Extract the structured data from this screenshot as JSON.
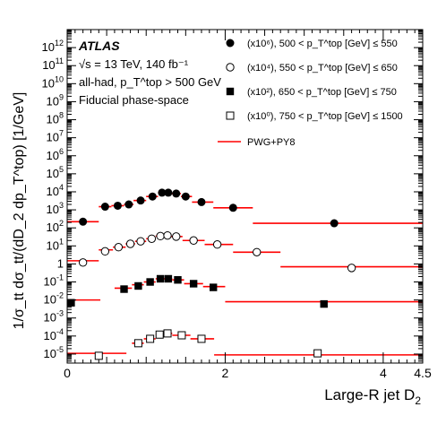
{
  "chart_data": {
    "type": "scatter",
    "title": "",
    "experiment": "ATLAS",
    "annotations": [
      "√s = 13 TeV, 140  fb⁻¹",
      "all-had, p_T^top > 500 GeV",
      "Fiducial phase-space"
    ],
    "xlabel": "Large-R jet D",
    "xlabel_sub": "2",
    "ylabel": "1/σ_tt dσ_tt/(dD_2 dp_T^top) [1/GeV]",
    "xlim": [
      0,
      4.5
    ],
    "ylog": true,
    "ylim_exponent": [
      -5.5,
      13
    ],
    "x_ticks": [
      "0",
      "2",
      "4",
      "4.5"
    ],
    "y_ticks": [
      {
        "base": "10",
        "exp": "12"
      },
      {
        "base": "10",
        "exp": "11"
      },
      {
        "base": "10",
        "exp": "10"
      },
      {
        "base": "10",
        "exp": "9"
      },
      {
        "base": "10",
        "exp": "8"
      },
      {
        "base": "10",
        "exp": "7"
      },
      {
        "base": "10",
        "exp": "6"
      },
      {
        "base": "10",
        "exp": "5"
      },
      {
        "base": "10",
        "exp": "4"
      },
      {
        "base": "10",
        "exp": "3"
      },
      {
        "base": "10",
        "exp": "2"
      },
      {
        "base": "10",
        "exp": "1"
      },
      {
        "base": "1",
        "exp": ""
      },
      {
        "base": "10",
        "exp": "-1"
      },
      {
        "base": "10",
        "exp": "-2"
      },
      {
        "base": "10",
        "exp": "-3"
      },
      {
        "base": "10",
        "exp": "-4"
      },
      {
        "base": "10",
        "exp": "-5"
      }
    ],
    "legend_position": "top-right",
    "legend": [
      {
        "scale": "(x10⁶), 500 < p_T^top [GeV] ≤ 550",
        "marker": "filled-circle"
      },
      {
        "scale": "(x10⁴), 550 < p_T^top [GeV] ≤ 650",
        "marker": "open-circle"
      },
      {
        "scale": "(x10²), 650 < p_T^top [GeV] ≤ 750",
        "marker": "filled-square"
      },
      {
        "scale": "(x10⁰), 750 < p_T^top [GeV] ≤ 1500",
        "marker": "open-square"
      },
      {
        "scale": "PWG+PY8",
        "marker": "red-line"
      }
    ],
    "model_color": "#ff0000",
    "series": [
      {
        "name": "(x10⁶), 500 < p_T^top [GeV] ≤ 550",
        "marker": "filled-circle",
        "points": [
          {
            "x": 0.2,
            "y": 220
          },
          {
            "x": 0.48,
            "y": 1500
          },
          {
            "x": 0.64,
            "y": 1700
          },
          {
            "x": 0.78,
            "y": 2000
          },
          {
            "x": 0.93,
            "y": 3300
          },
          {
            "x": 1.08,
            "y": 5500
          },
          {
            "x": 1.2,
            "y": 9000
          },
          {
            "x": 1.28,
            "y": 9000
          },
          {
            "x": 1.38,
            "y": 8000
          },
          {
            "x": 1.5,
            "y": 5500
          },
          {
            "x": 1.7,
            "y": 2700
          },
          {
            "x": 2.1,
            "y": 1300
          },
          {
            "x": 3.38,
            "y": 180
          }
        ],
        "model": [
          {
            "x0": 0.0,
            "x1": 0.4,
            "y": 220
          },
          {
            "x0": 0.4,
            "x1": 0.56,
            "y": 1500
          },
          {
            "x0": 0.56,
            "x1": 0.72,
            "y": 1700
          },
          {
            "x0": 0.72,
            "x1": 0.84,
            "y": 2000
          },
          {
            "x0": 0.84,
            "x1": 1.0,
            "y": 3300
          },
          {
            "x0": 1.0,
            "x1": 1.15,
            "y": 5500
          },
          {
            "x0": 1.15,
            "x1": 1.25,
            "y": 9000
          },
          {
            "x0": 1.25,
            "x1": 1.32,
            "y": 9000
          },
          {
            "x0": 1.32,
            "x1": 1.44,
            "y": 8000
          },
          {
            "x0": 1.44,
            "x1": 1.58,
            "y": 5500
          },
          {
            "x0": 1.58,
            "x1": 1.85,
            "y": 2700
          },
          {
            "x0": 1.85,
            "x1": 2.35,
            "y": 1300
          },
          {
            "x0": 2.35,
            "x1": 4.5,
            "y": 180
          }
        ]
      },
      {
        "name": "(x10⁴), 550 < p_T^top [GeV] ≤ 650",
        "marker": "open-circle",
        "points": [
          {
            "x": 0.2,
            "y": 1.2
          },
          {
            "x": 0.48,
            "y": 5
          },
          {
            "x": 0.65,
            "y": 8.5
          },
          {
            "x": 0.8,
            "y": 13
          },
          {
            "x": 0.93,
            "y": 18
          },
          {
            "x": 1.07,
            "y": 25
          },
          {
            "x": 1.18,
            "y": 35
          },
          {
            "x": 1.27,
            "y": 38
          },
          {
            "x": 1.38,
            "y": 33
          },
          {
            "x": 1.6,
            "y": 20
          },
          {
            "x": 1.9,
            "y": 12
          },
          {
            "x": 2.4,
            "y": 4.5
          },
          {
            "x": 3.6,
            "y": 0.6
          }
        ],
        "model": [
          {
            "x0": 0.0,
            "x1": 0.4,
            "y": 1.5
          },
          {
            "x0": 0.4,
            "x1": 0.58,
            "y": 6
          },
          {
            "x0": 0.58,
            "x1": 0.74,
            "y": 8.5
          },
          {
            "x0": 0.74,
            "x1": 0.86,
            "y": 13
          },
          {
            "x0": 0.86,
            "x1": 1.0,
            "y": 18
          },
          {
            "x0": 1.0,
            "x1": 1.12,
            "y": 25
          },
          {
            "x0": 1.12,
            "x1": 1.22,
            "y": 35
          },
          {
            "x0": 1.22,
            "x1": 1.32,
            "y": 38
          },
          {
            "x0": 1.32,
            "x1": 1.46,
            "y": 33
          },
          {
            "x0": 1.46,
            "x1": 1.74,
            "y": 20
          },
          {
            "x0": 1.74,
            "x1": 2.1,
            "y": 12
          },
          {
            "x0": 2.1,
            "x1": 2.7,
            "y": 4.5
          },
          {
            "x0": 2.7,
            "x1": 4.5,
            "y": 0.7
          }
        ]
      },
      {
        "name": "(x10²), 650 < p_T^top [GeV] ≤ 750",
        "marker": "filled-square",
        "points": [
          {
            "x": 0.05,
            "y": 0.007
          },
          {
            "x": 0.72,
            "y": 0.04
          },
          {
            "x": 0.9,
            "y": 0.06
          },
          {
            "x": 1.05,
            "y": 0.1
          },
          {
            "x": 1.18,
            "y": 0.15
          },
          {
            "x": 1.28,
            "y": 0.15
          },
          {
            "x": 1.4,
            "y": 0.13
          },
          {
            "x": 1.6,
            "y": 0.08
          },
          {
            "x": 1.85,
            "y": 0.05
          },
          {
            "x": 3.25,
            "y": 0.006
          }
        ],
        "model": [
          {
            "x0": 0.0,
            "x1": 0.42,
            "y": 0.01
          },
          {
            "x0": 0.6,
            "x1": 0.82,
            "y": 0.045
          },
          {
            "x0": 0.82,
            "x1": 0.97,
            "y": 0.07
          },
          {
            "x0": 0.97,
            "x1": 1.12,
            "y": 0.1
          },
          {
            "x0": 1.12,
            "x1": 1.23,
            "y": 0.15
          },
          {
            "x0": 1.23,
            "x1": 1.33,
            "y": 0.15
          },
          {
            "x0": 1.33,
            "x1": 1.48,
            "y": 0.13
          },
          {
            "x0": 1.48,
            "x1": 1.72,
            "y": 0.08
          },
          {
            "x0": 1.72,
            "x1": 2.0,
            "y": 0.055
          },
          {
            "x0": 2.0,
            "x1": 4.5,
            "y": 0.008
          }
        ]
      },
      {
        "name": "(x10⁰), 750 < p_T^top [GeV] ≤ 1500",
        "marker": "open-square",
        "points": [
          {
            "x": 0.4,
            "y": 8e-06
          },
          {
            "x": 0.9,
            "y": 4e-05
          },
          {
            "x": 1.05,
            "y": 7e-05
          },
          {
            "x": 1.17,
            "y": 0.00012
          },
          {
            "x": 1.27,
            "y": 0.00014
          },
          {
            "x": 1.45,
            "y": 0.00011
          },
          {
            "x": 1.7,
            "y": 7e-05
          },
          {
            "x": 3.17,
            "y": 1.1e-05
          }
        ],
        "model": [
          {
            "x0": 0.0,
            "x1": 0.75,
            "y": 1.1e-05
          },
          {
            "x0": 0.82,
            "x1": 0.97,
            "y": 4e-05
          },
          {
            "x0": 0.97,
            "x1": 1.12,
            "y": 7e-05
          },
          {
            "x0": 1.12,
            "x1": 1.22,
            "y": 0.00012
          },
          {
            "x0": 1.22,
            "x1": 1.33,
            "y": 0.00014
          },
          {
            "x0": 1.33,
            "x1": 1.56,
            "y": 0.00011
          },
          {
            "x0": 1.56,
            "x1": 1.86,
            "y": 7e-05
          },
          {
            "x0": 1.86,
            "x1": 4.5,
            "y": 9e-06
          }
        ]
      }
    ]
  }
}
